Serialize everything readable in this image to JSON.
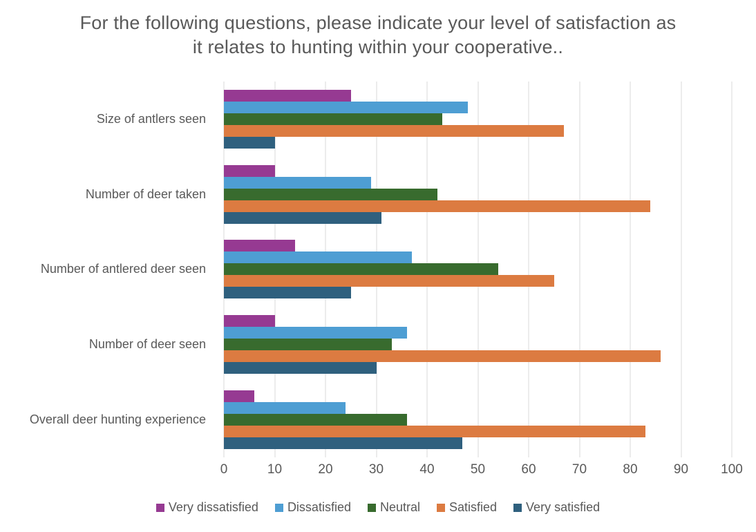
{
  "chart_data": {
    "type": "bar",
    "orientation": "horizontal",
    "title": "For the following questions, please indicate your level of satisfaction as it relates to hunting within your cooperative..",
    "categories": [
      "Size of antlers seen",
      "Number of deer taken",
      "Number of antlered deer seen",
      "Number of deer seen",
      "Overall deer hunting experience"
    ],
    "series": [
      {
        "name": "Very dissatisfied",
        "color": "#963A92",
        "values": [
          25,
          10,
          14,
          10,
          6
        ]
      },
      {
        "name": "Dissatisfied",
        "color": "#4E9ED3",
        "values": [
          48,
          29,
          37,
          36,
          24
        ]
      },
      {
        "name": "Neutral",
        "color": "#386B2E",
        "values": [
          43,
          42,
          54,
          33,
          36
        ]
      },
      {
        "name": "Satisfied",
        "color": "#DC7B41",
        "values": [
          67,
          84,
          65,
          86,
          83
        ]
      },
      {
        "name": "Very satisfied",
        "color": "#2F607E",
        "values": [
          10,
          31,
          25,
          30,
          47
        ]
      }
    ],
    "x_axis": {
      "min": 0,
      "max": 100,
      "tick_interval": 10,
      "tick_labels": [
        "0",
        "10",
        "20",
        "30",
        "40",
        "50",
        "60",
        "70",
        "80",
        "90",
        "100"
      ]
    },
    "grid": true,
    "gridline_color": "#D9D9D9",
    "text_color": "#595959",
    "legend_position": "bottom"
  }
}
